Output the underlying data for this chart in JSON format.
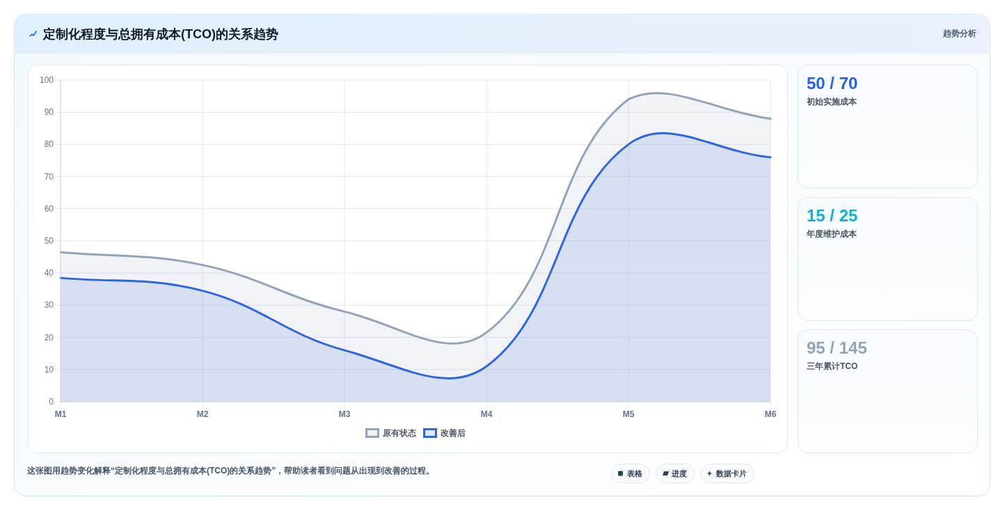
{
  "chart_data": [
    {
      "type": "area",
      "title": "定制化程度与总拥有成本(TCO)的关系趋势",
      "categories": [
        "M1",
        "M2",
        "M3",
        "M4",
        "M5",
        "M6"
      ],
      "series": [
        {
          "name": "原有状态",
          "color": "#94a3b8",
          "values": [
            46.5,
            42.5,
            28,
            21.5,
            94,
            88
          ]
        },
        {
          "name": "改善后",
          "color": "#2f66e0",
          "values": [
            38.5,
            34.5,
            16,
            11,
            80,
            76
          ]
        }
      ],
      "ylim": [
        0,
        100
      ],
      "yticks": [
        0,
        10,
        20,
        30,
        40,
        50,
        60,
        70,
        80,
        90,
        100
      ],
      "grid": true,
      "legend": "bottom",
      "marker": "none",
      "line_style": "solid",
      "annotations": [
        "趋势分析",
        "这张图用趋势变化解释“定制化程度与总拥有成本(TCO)的关系趋势”，帮助读者看到问题从出现到改善的过程。",
        "表格",
        "进度",
        "数据卡片"
      ]
    },
    {
      "type": "other",
      "annotations": [
        "50 / 70",
        "初始实施成本",
        "15 / 25",
        "年度维护成本",
        "95 / 145",
        "三年累计TCO"
      ]
    }
  ]
}
